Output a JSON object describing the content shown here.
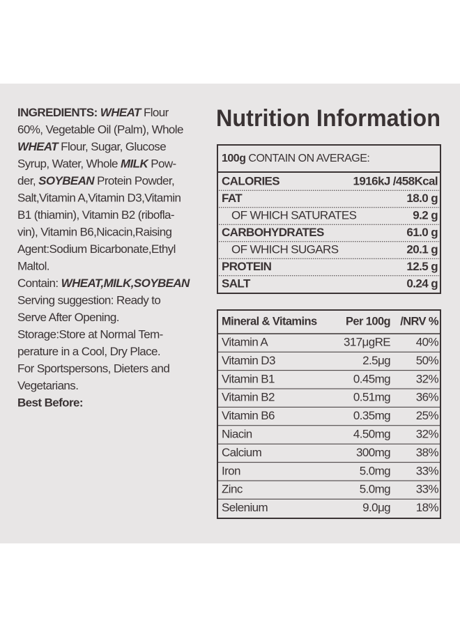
{
  "ingredients": {
    "lines": [
      [
        {
          "text": "INGREDIENTS: ",
          "style": "bold"
        },
        {
          "text": "WHEAT",
          "style": "bold-italic"
        },
        {
          "text": " Flour",
          "style": "normal"
        }
      ],
      [
        {
          "text": "60%, Vegetable Oil (Palm), Whole",
          "style": "normal"
        }
      ],
      [
        {
          "text": "WHEAT",
          "style": "bold-italic"
        },
        {
          "text": " Flour, Sugar, Glucose",
          "style": "normal"
        }
      ],
      [
        {
          "text": "Syrup, Water, Whole ",
          "style": "normal"
        },
        {
          "text": "MILK",
          "style": "bold-italic"
        },
        {
          "text": " Pow-",
          "style": "normal"
        }
      ],
      [
        {
          "text": "der, ",
          "style": "normal"
        },
        {
          "text": "SOYBEAN",
          "style": "bold-italic"
        },
        {
          "text": " Protein Powder,",
          "style": "normal"
        }
      ],
      [
        {
          "text": "Salt,Vitamin A,Vitamin D3,Vitamin",
          "style": "normal"
        }
      ],
      [
        {
          "text": "B1 (thiamin), Vitamin B2 (ribofla-",
          "style": "normal"
        }
      ],
      [
        {
          "text": "vin), Vitamin B6,Nicacin,Raising",
          "style": "normal"
        }
      ],
      [
        {
          "text": "Agent:Sodium Bicarbonate,Ethyl",
          "style": "normal"
        }
      ],
      [
        {
          "text": "Maltol.",
          "style": "normal"
        }
      ],
      [
        {
          "text": "Contain: ",
          "style": "normal"
        },
        {
          "text": "WHEAT,MILK,SOYBEAN",
          "style": "bold-italic"
        }
      ],
      [
        {
          "text": "Serving suggestion: Ready to",
          "style": "normal"
        }
      ],
      [
        {
          "text": "Serve After Opening.",
          "style": "normal"
        }
      ],
      [
        {
          "text": "Storage:Store at Normal Tem-",
          "style": "normal"
        }
      ],
      [
        {
          "text": "perature in a Cool, Dry Place.",
          "style": "normal"
        }
      ],
      [
        {
          "text": "For Sportspersons, Dieters and",
          "style": "normal"
        }
      ],
      [
        {
          "text": "Vegetarians.",
          "style": "normal"
        }
      ],
      [
        {
          "text": "Best Before:",
          "style": "bold"
        }
      ]
    ]
  },
  "nutrition": {
    "title": "Nutrition Information",
    "header": {
      "amount": "100g",
      "text": " CONTAIN ON AVERAGE:"
    },
    "rows": [
      {
        "label": "CALORIES",
        "value": "1916kJ /458Kcal",
        "bold": true
      },
      {
        "label": "FAT",
        "value": "18.0 g",
        "bold": true
      },
      {
        "label": "OF WHICH SATURATES",
        "value": "9.2 g",
        "bold": false
      },
      {
        "label": "CARBOHYDRATES",
        "value": "61.0 g",
        "bold": true
      },
      {
        "label": "OF WHICH SUGARS",
        "value": "20.1 g",
        "bold": false
      },
      {
        "label": "PROTEIN",
        "value": "12.5 g",
        "bold": true
      },
      {
        "label": "SALT",
        "value": "0.24 g",
        "bold": true
      }
    ]
  },
  "vitamins": {
    "header": [
      "Mineral & Vitamins",
      "Per 100g",
      "/NRV %"
    ],
    "rows": [
      [
        "Vitamin A",
        "317μgRE",
        "40%"
      ],
      [
        "Vitamin D3",
        "2.5μg",
        "50%"
      ],
      [
        "Vitamin B1",
        "0.45mg",
        "32%"
      ],
      [
        "Vitamin B2",
        "0.51mg",
        "36%"
      ],
      [
        "Vitamin B6",
        "0.35mg",
        "25%"
      ],
      [
        "Niacin",
        "4.50mg",
        "32%"
      ],
      [
        "Calcium",
        "300mg",
        "38%"
      ],
      [
        "Iron",
        "5.0mg",
        "33%"
      ],
      [
        "Zinc",
        "5.0mg",
        "33%"
      ],
      [
        "Selenium",
        "9.0μg",
        "18%"
      ]
    ]
  }
}
